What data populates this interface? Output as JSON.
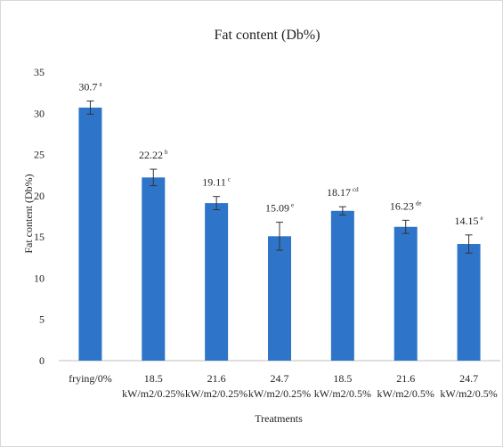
{
  "chart_data": {
    "type": "bar",
    "title": "Fat content (Db%)",
    "xlabel": "Treatments",
    "ylabel": "Fat content (Db%)",
    "ylim": [
      0,
      35
    ],
    "yticks": [
      "0",
      "5",
      "10",
      "15",
      "20",
      "25",
      "30",
      "35"
    ],
    "categories": [
      [
        "frying/0%"
      ],
      [
        "18.5",
        "kW/m2/0.25%"
      ],
      [
        "21.6",
        "kW/m2/0.25%"
      ],
      [
        "24.7",
        "kW/m2/0.25%"
      ],
      [
        "18.5",
        "kW/m2/0.5%"
      ],
      [
        "21.6",
        "kW/m2/0.5%"
      ],
      [
        "24.7",
        "kW/m2/0.5%"
      ]
    ],
    "values": [
      30.7,
      22.22,
      19.11,
      15.09,
      18.17,
      16.23,
      14.15
    ],
    "error": [
      0.8,
      1.0,
      0.8,
      1.7,
      0.5,
      0.8,
      1.1
    ],
    "labels": [
      "30.7",
      "22.22",
      "19.11",
      "15.09",
      "18.17",
      "16.23",
      "14.15"
    ],
    "letters": [
      "a",
      "b",
      "c",
      "e",
      "cd",
      "de",
      "e"
    ],
    "bar_color": "#2e75c9",
    "grid": false,
    "legend": "none"
  }
}
